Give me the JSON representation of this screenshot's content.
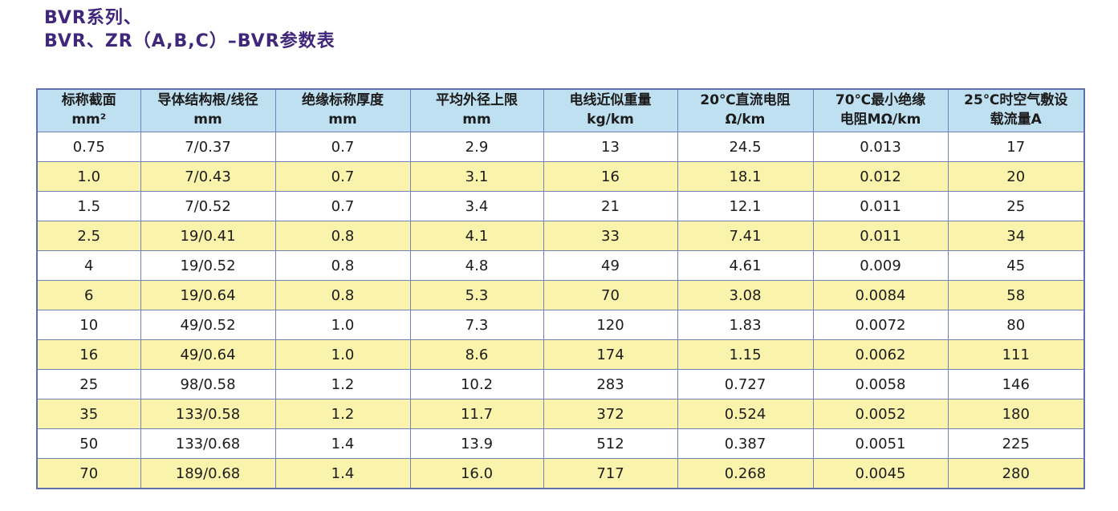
{
  "title": {
    "line1": "BVR系列、",
    "line2": "BVR、ZR（A,B,C）–BVR参数表"
  },
  "colors": {
    "title_text": "#40277c",
    "header_bg": "#bfe0f0",
    "row_even_bg": "#faf3ab",
    "row_odd_bg": "#ffffff",
    "grid_border": "#7381bd",
    "outer_border": "#5f6fae",
    "cell_text": "#1c1c1c"
  },
  "table": {
    "headers": [
      {
        "line1": "标称截面",
        "line2": "mm²"
      },
      {
        "line1": "导体结构根/线径",
        "line2": "mm"
      },
      {
        "line1": "绝缘标称厚度",
        "line2": "mm"
      },
      {
        "line1": "平均外径上限",
        "line2": "mm"
      },
      {
        "line1": "电线近似重量",
        "line2": "kg/km"
      },
      {
        "line1": "20℃直流电阻",
        "line2": "Ω/km"
      },
      {
        "line1": "70℃最小绝缘",
        "line2": "电阻MΩ/km"
      },
      {
        "line1": "25℃时空气敷设",
        "line2": "载流量A"
      }
    ],
    "rows": [
      [
        "0.75",
        "7/0.37",
        "0.7",
        "2.9",
        "13",
        "24.5",
        "0.013",
        "17"
      ],
      [
        "1.0",
        "7/0.43",
        "0.7",
        "3.1",
        "16",
        "18.1",
        "0.012",
        "20"
      ],
      [
        "1.5",
        "7/0.52",
        "0.7",
        "3.4",
        "21",
        "12.1",
        "0.011",
        "25"
      ],
      [
        "2.5",
        "19/0.41",
        "0.8",
        "4.1",
        "33",
        "7.41",
        "0.011",
        "34"
      ],
      [
        "4",
        "19/0.52",
        "0.8",
        "4.8",
        "49",
        "4.61",
        "0.009",
        "45"
      ],
      [
        "6",
        "19/0.64",
        "0.8",
        "5.3",
        "70",
        "3.08",
        "0.0084",
        "58"
      ],
      [
        "10",
        "49/0.52",
        "1.0",
        "7.3",
        "120",
        "1.83",
        "0.0072",
        "80"
      ],
      [
        "16",
        "49/0.64",
        "1.0",
        "8.6",
        "174",
        "1.15",
        "0.0062",
        "111"
      ],
      [
        "25",
        "98/0.58",
        "1.2",
        "10.2",
        "283",
        "0.727",
        "0.0058",
        "146"
      ],
      [
        "35",
        "133/0.58",
        "1.2",
        "11.7",
        "372",
        "0.524",
        "0.0052",
        "180"
      ],
      [
        "50",
        "133/0.68",
        "1.4",
        "13.9",
        "512",
        "0.387",
        "0.0051",
        "225"
      ],
      [
        "70",
        "189/0.68",
        "1.4",
        "16.0",
        "717",
        "0.268",
        "0.0045",
        "280"
      ]
    ]
  }
}
